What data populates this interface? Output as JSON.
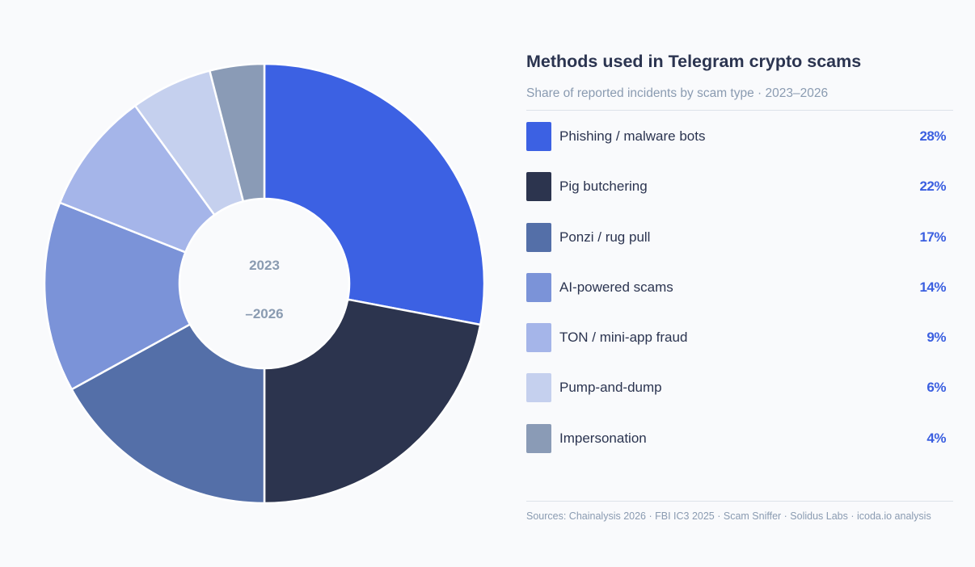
{
  "chart_data": {
    "type": "pie",
    "title": "Methods used in Telegram crypto scams",
    "subtitle": "Share of reported incidents by scam type · 2023–2026",
    "center_label": [
      "2023",
      "–2026"
    ],
    "legend_placement": "right",
    "slices": [
      {
        "label": "Phishing / malware bots",
        "value": 28,
        "display": "28%",
        "color": "#3c61e3"
      },
      {
        "label": "Pig butchering",
        "value": 22,
        "display": "22%",
        "color": "#2c344e"
      },
      {
        "label": "Ponzi / rug pull",
        "value": 17,
        "display": "17%",
        "color": "#546fa8"
      },
      {
        "label": "AI-powered scams",
        "value": 14,
        "display": "14%",
        "color": "#7b93d8"
      },
      {
        "label": "TON / mini-app fraud",
        "value": 9,
        "display": "9%",
        "color": "#a5b5e9"
      },
      {
        "label": "Pump-and-dump",
        "value": 6,
        "display": "6%",
        "color": "#c5d0ee"
      },
      {
        "label": "Impersonation",
        "value": 4,
        "display": "4%",
        "color": "#8a9bb6"
      }
    ],
    "sources": "Sources: Chainalysis 2026 · FBI IC3 2025 · Scam Sniffer · Solidus Labs · icoda.io analysis"
  }
}
